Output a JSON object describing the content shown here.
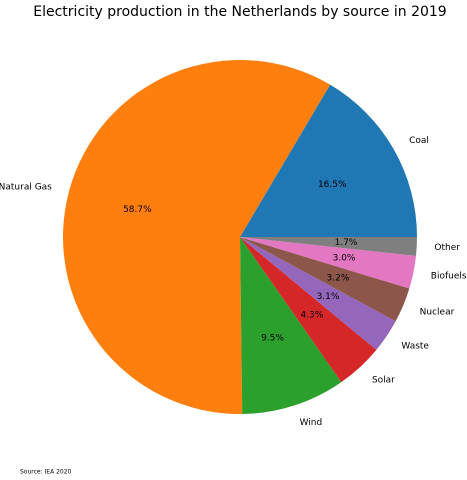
{
  "chart_data": {
    "type": "pie",
    "title": "Electricity production in the Netherlands by source in 2019",
    "categories": [
      "Coal",
      "Natural Gas",
      "Wind",
      "Solar",
      "Waste",
      "Nuclear",
      "Biofuels",
      "Other"
    ],
    "values": [
      16.5,
      58.7,
      9.5,
      4.3,
      3.1,
      3.2,
      3.0,
      1.7
    ],
    "value_labels": [
      "16.5%",
      "58.7%",
      "9.5%",
      "4.3%",
      "3.1%",
      "3.2%",
      "3.0%",
      "1.7%"
    ],
    "colors": [
      "#1f77b4",
      "#ff7f0e",
      "#2ca02c",
      "#d62728",
      "#9467bd",
      "#8c564b",
      "#e377c2",
      "#7f7f7f"
    ],
    "source": "Source: IEA 2020"
  }
}
